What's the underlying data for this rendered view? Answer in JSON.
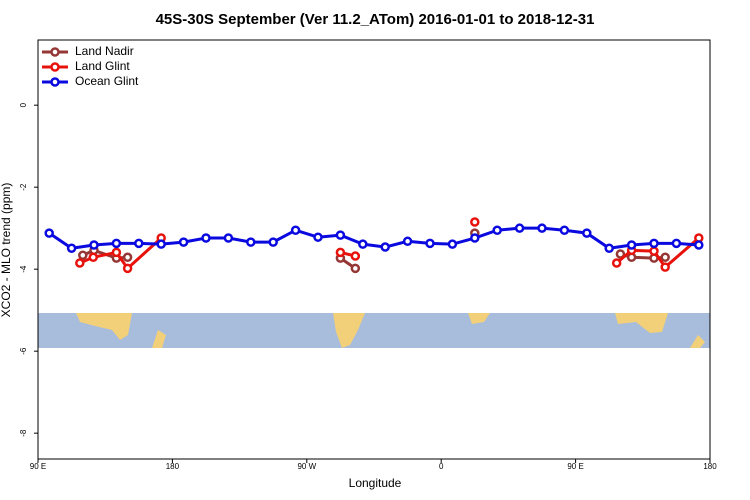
{
  "chart_data": {
    "type": "line",
    "title": "45S-30S September (Ver 11.2_ATom)   2016-01-01 to 2018-12-31",
    "x_label": "Longitude",
    "y_label": "XCO2 - MLO trend (ppm)",
    "xlim": [
      90,
      540
    ],
    "xticks": [
      {
        "value": 90,
        "label": "90 E"
      },
      {
        "value": 180,
        "label": "180"
      },
      {
        "value": 270,
        "label": "90 W"
      },
      {
        "value": 360,
        "label": "0"
      },
      {
        "value": 450,
        "label": "90 E"
      },
      {
        "value": 540,
        "label": "180"
      }
    ],
    "ylim": [
      -8.63,
      1.59
    ],
    "yticks": [
      0,
      -2,
      -4,
      -6,
      -8
    ],
    "legend": "top-left",
    "series": [
      {
        "name": "Land Nadir",
        "color": "#953735",
        "x": [
          120,
          127.5,
          142.5,
          150,
          null,
          292.5,
          302.5,
          null,
          382.5,
          null,
          480,
          487.5,
          502.5,
          510
        ],
        "values": [
          -3.66,
          -3.54,
          -3.73,
          -3.71,
          null,
          -3.73,
          -3.98,
          null,
          -3.12,
          null,
          -3.63,
          -3.71,
          -3.73,
          -3.71
        ]
      },
      {
        "name": "Land Glint",
        "color": "#e8120c",
        "x": [
          118,
          127,
          142.5,
          150,
          172.5,
          null,
          292.5,
          302.5,
          null,
          382.5,
          null,
          477.5,
          487.5,
          502.5,
          510,
          532.5
        ],
        "values": [
          -3.85,
          -3.71,
          -3.59,
          -3.98,
          -3.24,
          null,
          -3.59,
          -3.68,
          null,
          -2.85,
          null,
          -3.85,
          -3.54,
          -3.56,
          -3.95,
          -3.24
        ]
      },
      {
        "name": "Ocean Glint",
        "color": "#0a0ae0",
        "x": [
          97.5,
          112.5,
          127.5,
          142.5,
          157.5,
          172.5,
          187.5,
          202.5,
          217.5,
          232.5,
          247.5,
          262.5,
          277.5,
          292.5,
          307.5,
          322.5,
          337.5,
          352.5,
          367.5,
          382.5,
          397.5,
          412.5,
          427.5,
          442.5,
          457.5,
          472.5,
          487.5,
          502.5,
          517.5,
          532.5
        ],
        "values": [
          -3.12,
          -3.49,
          -3.41,
          -3.37,
          -3.37,
          -3.39,
          -3.34,
          -3.24,
          -3.24,
          -3.34,
          -3.34,
          -3.05,
          -3.22,
          -3.17,
          -3.39,
          -3.46,
          -3.32,
          -3.37,
          -3.39,
          -3.24,
          -3.05,
          -3.0,
          -3.0,
          -3.05,
          -3.12,
          -3.49,
          -3.41,
          -3.37,
          -3.37,
          -3.41
        ]
      }
    ]
  }
}
